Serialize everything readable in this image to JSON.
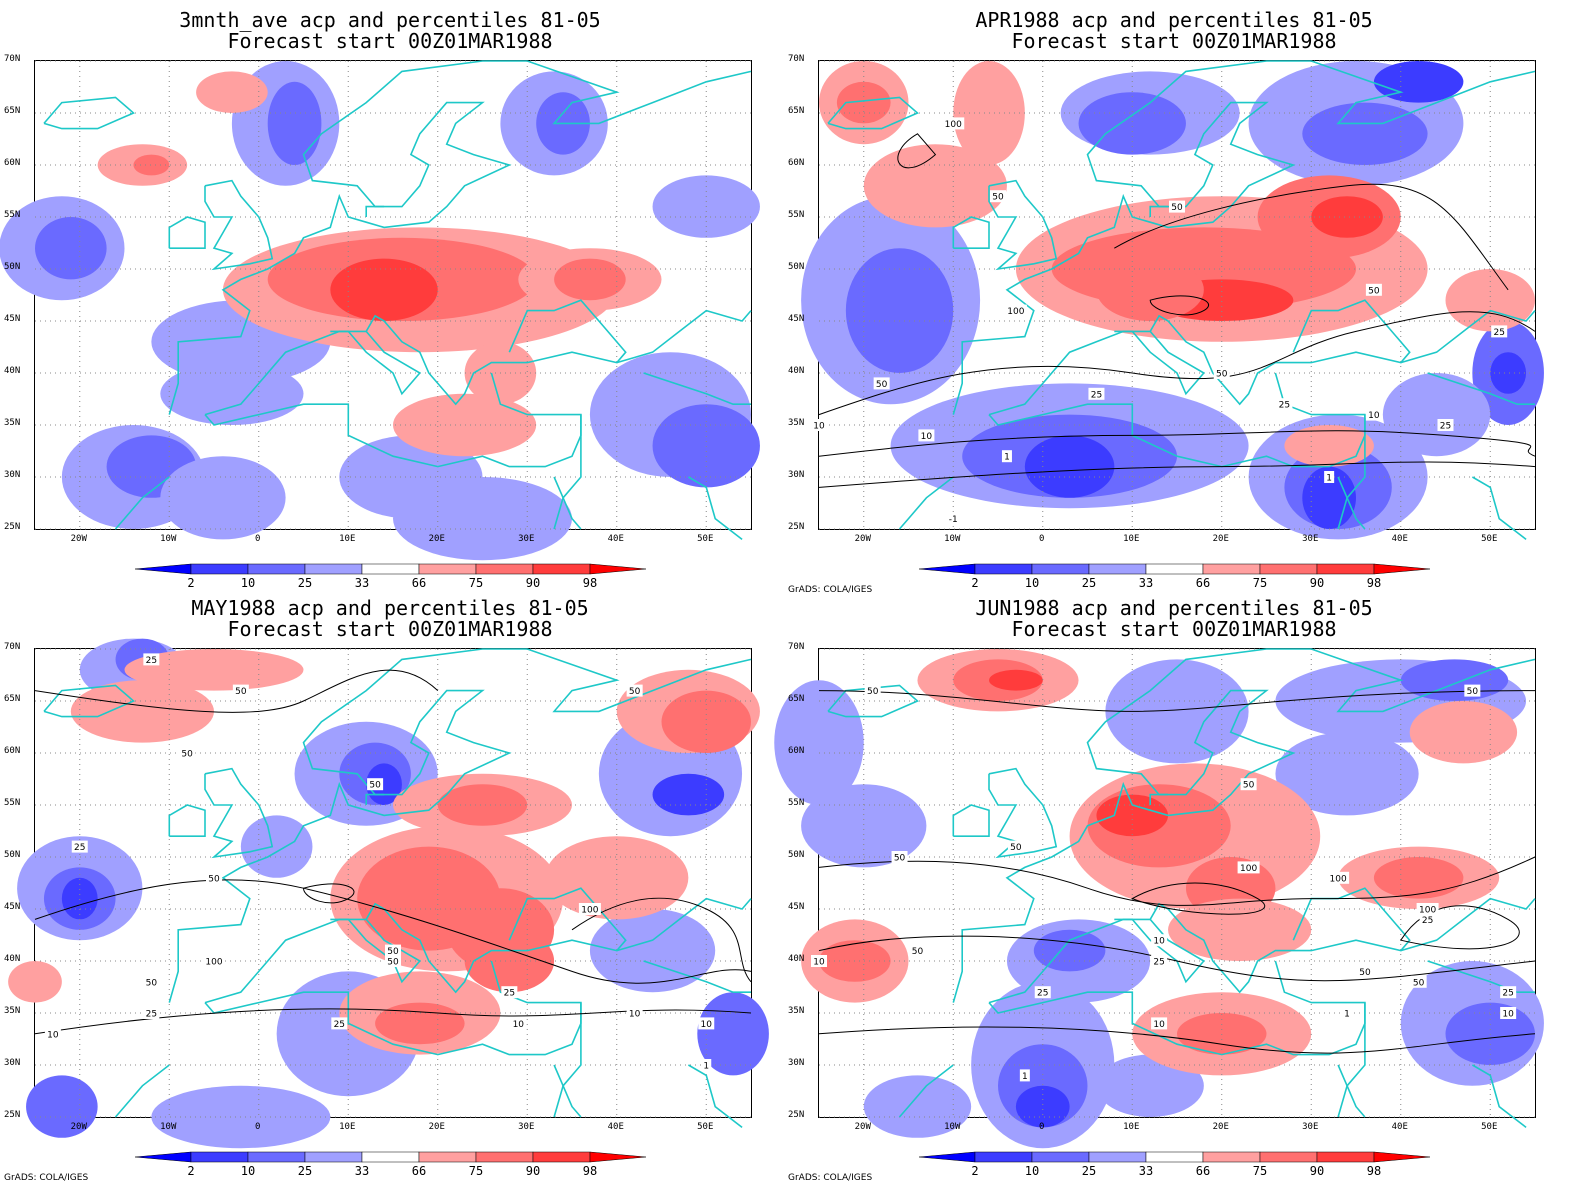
{
  "panels": [
    {
      "title_line1": "3mnth_ave acp and percentiles 81-05",
      "title_line2": "Forecast start 00Z01MAR1988",
      "credit": "",
      "contour_labels": []
    },
    {
      "title_line1": "APR1988 acp and percentiles 81-05",
      "title_line2": "Forecast start 00Z01MAR1988",
      "credit": "GrADS: COLA/IGES",
      "contour_labels": [
        "100",
        "50",
        "50",
        "100",
        "50",
        "25",
        "50",
        "25",
        "10",
        "10",
        "25",
        "1",
        "1",
        "50",
        "10",
        "25",
        "-1"
      ]
    },
    {
      "title_line1": "MAY1988 acp and percentiles 81-05",
      "title_line2": "Forecast start 00Z01MAR1988",
      "credit": "GrADS: COLA/IGES",
      "contour_labels": [
        "25",
        "50",
        "50",
        "50",
        "25",
        "50",
        "50",
        "100",
        "100",
        "50",
        "50",
        "25",
        "25",
        "10",
        "25",
        "10",
        "10",
        "10",
        "1",
        "50"
      ]
    },
    {
      "title_line1": "JUN1988 acp and percentiles 81-05",
      "title_line2": "Forecast start 00Z01MAR1988",
      "credit": "GrADS: COLA/IGES",
      "contour_labels": [
        "50",
        "50",
        "50",
        "50",
        "50",
        "100",
        "100",
        "100",
        "50",
        "25",
        "50",
        "25",
        "10",
        "10",
        "25",
        "10",
        "1",
        "50",
        "25",
        "10",
        "1"
      ]
    }
  ],
  "lat_labels": [
    "70N",
    "65N",
    "60N",
    "55N",
    "50N",
    "45N",
    "40N",
    "35N",
    "30N",
    "25N"
  ],
  "lon_labels": [
    "20W",
    "10W",
    "0",
    "10E",
    "20E",
    "30E",
    "40E",
    "50E"
  ],
  "colorbar": {
    "labels": [
      "2",
      "10",
      "25",
      "33",
      "66",
      "75",
      "90",
      "98"
    ],
    "colors": [
      "#0000ff",
      "#3c3cff",
      "#6a6aff",
      "#a0a0ff",
      "#ffffff",
      "#ffa0a0",
      "#ff7070",
      "#ff3c3c",
      "#ff0000"
    ]
  },
  "colors": {
    "coast": "#1ec8c8",
    "contour": "#000000"
  }
}
